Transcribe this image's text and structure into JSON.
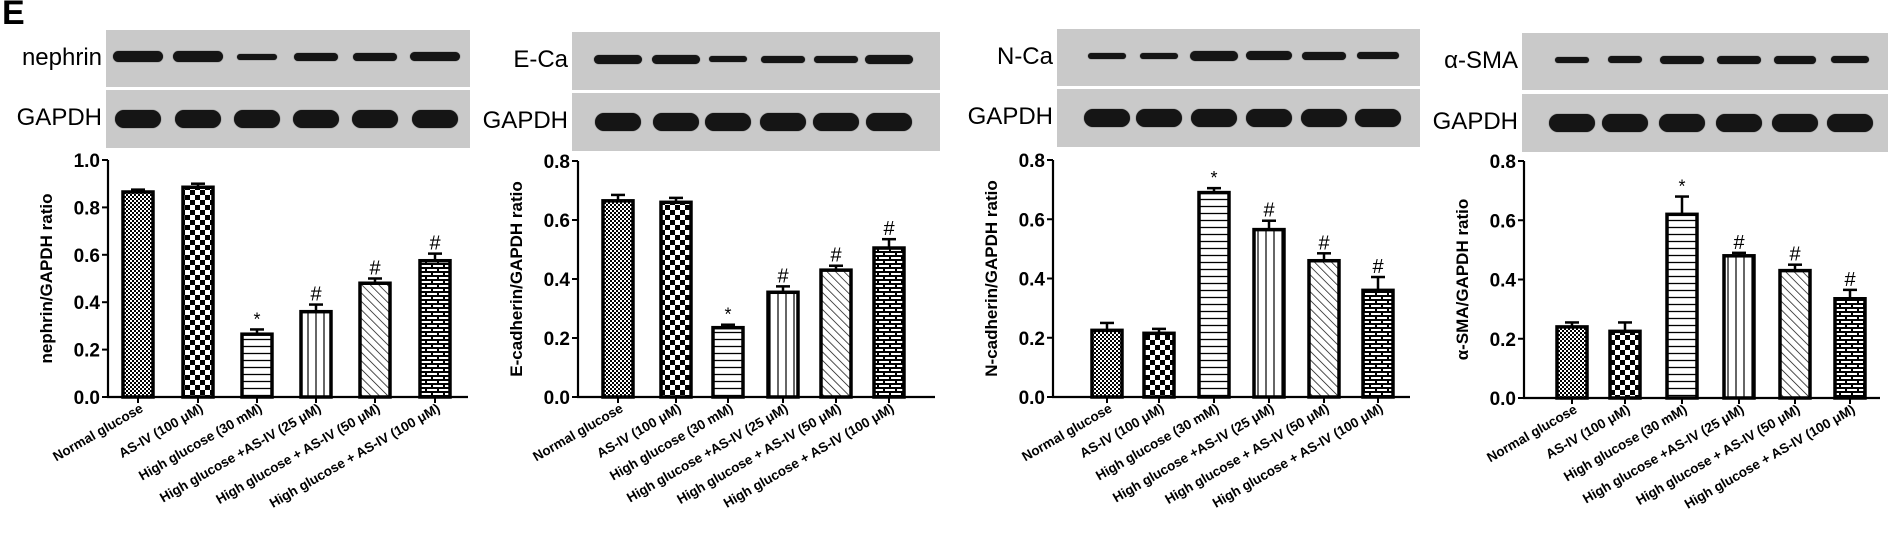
{
  "figure": {
    "panel_letter": "E",
    "blot_loading_control": "GAPDH",
    "x_categories": [
      "Normal glucose",
      "AS-IV (100 μM)",
      "High glucose (30 mM)",
      "High glucose +AS-IV (25 μM)",
      "High glucose + AS-IV (50 μM)",
      "High glucose + AS-IV (100 μM)"
    ],
    "panels": [
      {
        "blot_label": "nephrin",
        "ylabel": "nephrin/GAPDH ratio"
      },
      {
        "blot_label": "E-Ca",
        "ylabel": "E-cadherin/GAPDH ratio"
      },
      {
        "blot_label": "N-Ca",
        "ylabel": "N-cadherin/GAPDH ratio"
      },
      {
        "blot_label": "α-SMA",
        "ylabel": "α-SMA/GAPDH ratio"
      }
    ]
  },
  "chart_data": [
    {
      "type": "bar",
      "title": "",
      "xlabel": "",
      "ylabel": "nephrin/GAPDH ratio",
      "categories": [
        "Normal glucose",
        "AS-IV (100 μM)",
        "High glucose (30 mM)",
        "High glucose +AS-IV (25 μM)",
        "High glucose + AS-IV (50 μM)",
        "High glucose + AS-IV (100 μM)"
      ],
      "values": [
        0.865,
        0.885,
        0.265,
        0.36,
        0.48,
        0.575
      ],
      "errors": [
        0.01,
        0.015,
        0.02,
        0.03,
        0.02,
        0.03
      ],
      "annotations": [
        "",
        "",
        "*",
        "#",
        "#",
        "#"
      ],
      "ylim": [
        0,
        1.0
      ],
      "yticks": [
        "0.0",
        "0.2",
        "0.4",
        "0.6",
        "0.8",
        "1.0"
      ],
      "grid": false,
      "legend": "none"
    },
    {
      "type": "bar",
      "title": "",
      "xlabel": "",
      "ylabel": "E-cadherin/GAPDH ratio",
      "categories": [
        "Normal glucose",
        "AS-IV (100 μM)",
        "High glucose (30 mM)",
        "High glucose +AS-IV (25 μM)",
        "High glucose + AS-IV (50 μM)",
        "High glucose + AS-IV (100 μM)"
      ],
      "values": [
        0.665,
        0.66,
        0.235,
        0.355,
        0.43,
        0.505
      ],
      "errors": [
        0.02,
        0.015,
        0.01,
        0.02,
        0.015,
        0.03
      ],
      "annotations": [
        "",
        "",
        "*",
        "#",
        "#",
        "#"
      ],
      "ylim": [
        0,
        0.8
      ],
      "yticks": [
        "0.0",
        "0.2",
        "0.4",
        "0.6",
        "0.8"
      ],
      "grid": false,
      "legend": "none"
    },
    {
      "type": "bar",
      "title": "",
      "xlabel": "",
      "ylabel": "N-cadherin/GAPDH ratio",
      "categories": [
        "Normal glucose",
        "AS-IV (100 μM)",
        "High glucose (30 mM)",
        "High glucose +AS-IV (25 μM)",
        "High glucose + AS-IV (50 μM)",
        "High glucose + AS-IV (100 μM)"
      ],
      "values": [
        0.225,
        0.215,
        0.69,
        0.565,
        0.46,
        0.36
      ],
      "errors": [
        0.025,
        0.015,
        0.015,
        0.03,
        0.025,
        0.045
      ],
      "annotations": [
        "",
        "",
        "*",
        "#",
        "#",
        "#"
      ],
      "ylim": [
        0,
        0.8
      ],
      "yticks": [
        "0.0",
        "0.2",
        "0.4",
        "0.6",
        "0.8"
      ],
      "grid": false,
      "legend": "none"
    },
    {
      "type": "bar",
      "title": "",
      "xlabel": "",
      "ylabel": "α-SMA/GAPDH ratio",
      "categories": [
        "Normal glucose",
        "AS-IV (100 μM)",
        "High glucose (30 mM)",
        "High glucose +AS-IV (25 μM)",
        "High glucose + AS-IV (50 μM)",
        "High glucose + AS-IV (100 μM)"
      ],
      "values": [
        0.24,
        0.225,
        0.62,
        0.48,
        0.43,
        0.335
      ],
      "errors": [
        0.015,
        0.03,
        0.06,
        0.01,
        0.02,
        0.03
      ],
      "annotations": [
        "",
        "",
        "*",
        "#",
        "#",
        "#"
      ],
      "ylim": [
        0,
        0.8
      ],
      "yticks": [
        "0.0",
        "0.2",
        "0.4",
        "0.6",
        "0.8"
      ],
      "grid": false,
      "legend": "none"
    }
  ]
}
